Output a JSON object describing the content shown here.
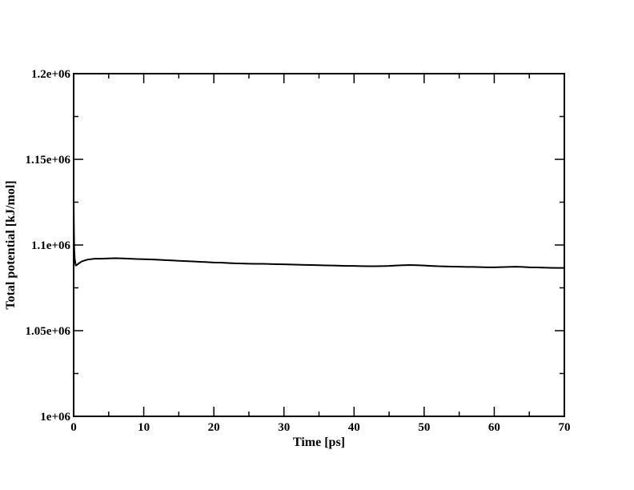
{
  "chart_data": {
    "type": "line",
    "title": "",
    "xlabel": "Time [ps]",
    "ylabel": "Total potential [kJ/mol]",
    "xlim": [
      0,
      70
    ],
    "ylim": [
      1000000,
      1200000
    ],
    "x_ticks": [
      0,
      10,
      20,
      30,
      40,
      50,
      60,
      70
    ],
    "x_tick_labels": [
      "0",
      "10",
      "20",
      "30",
      "40",
      "50",
      "60",
      "70"
    ],
    "y_ticks": [
      1000000,
      1050000,
      1100000,
      1150000,
      1200000
    ],
    "y_tick_labels": [
      "1e+06",
      "1.05e+06",
      "1.1e+06",
      "1.15e+06",
      "1.2e+06"
    ],
    "grid": false,
    "legend": "none",
    "colors": {
      "line": "#000000",
      "axes": "#000000",
      "background": "#ffffff"
    },
    "series": [
      {
        "x": [
          0,
          0.03,
          0.08,
          0.15,
          0.3,
          0.5,
          0.8,
          1.2,
          2,
          3,
          4,
          5,
          6,
          7,
          8,
          9,
          10,
          11,
          12,
          13,
          14,
          15,
          16,
          17,
          18,
          19,
          20,
          21,
          22,
          23,
          24,
          25,
          26,
          27,
          28,
          29,
          30,
          31,
          32,
          33,
          34,
          35,
          36,
          37,
          38,
          39,
          40,
          41,
          42,
          43,
          44,
          45,
          46,
          47,
          48,
          49,
          50,
          51,
          52,
          53,
          54,
          55,
          56,
          57,
          58,
          59,
          60,
          61,
          62,
          63,
          64,
          65,
          66,
          67,
          68,
          69,
          70
        ],
        "y": [
          1128000,
          1112000,
          1098000,
          1092000,
          1088000,
          1088500,
          1089500,
          1090500,
          1091500,
          1092000,
          1092000,
          1092200,
          1092300,
          1092200,
          1092000,
          1091800,
          1091700,
          1091600,
          1091400,
          1091200,
          1091000,
          1090800,
          1090600,
          1090400,
          1090200,
          1090000,
          1089800,
          1089700,
          1089500,
          1089300,
          1089200,
          1089100,
          1089000,
          1089000,
          1088900,
          1088800,
          1088700,
          1088600,
          1088500,
          1088400,
          1088300,
          1088200,
          1088100,
          1088000,
          1087900,
          1087800,
          1087800,
          1087700,
          1087600,
          1087600,
          1087700,
          1087800,
          1088000,
          1088200,
          1088300,
          1088200,
          1088000,
          1087800,
          1087600,
          1087500,
          1087400,
          1087300,
          1087200,
          1087200,
          1087100,
          1087000,
          1087000,
          1087100,
          1087200,
          1087300,
          1087200,
          1087000,
          1086900,
          1086800,
          1086700,
          1086600,
          1086600
        ]
      }
    ]
  }
}
